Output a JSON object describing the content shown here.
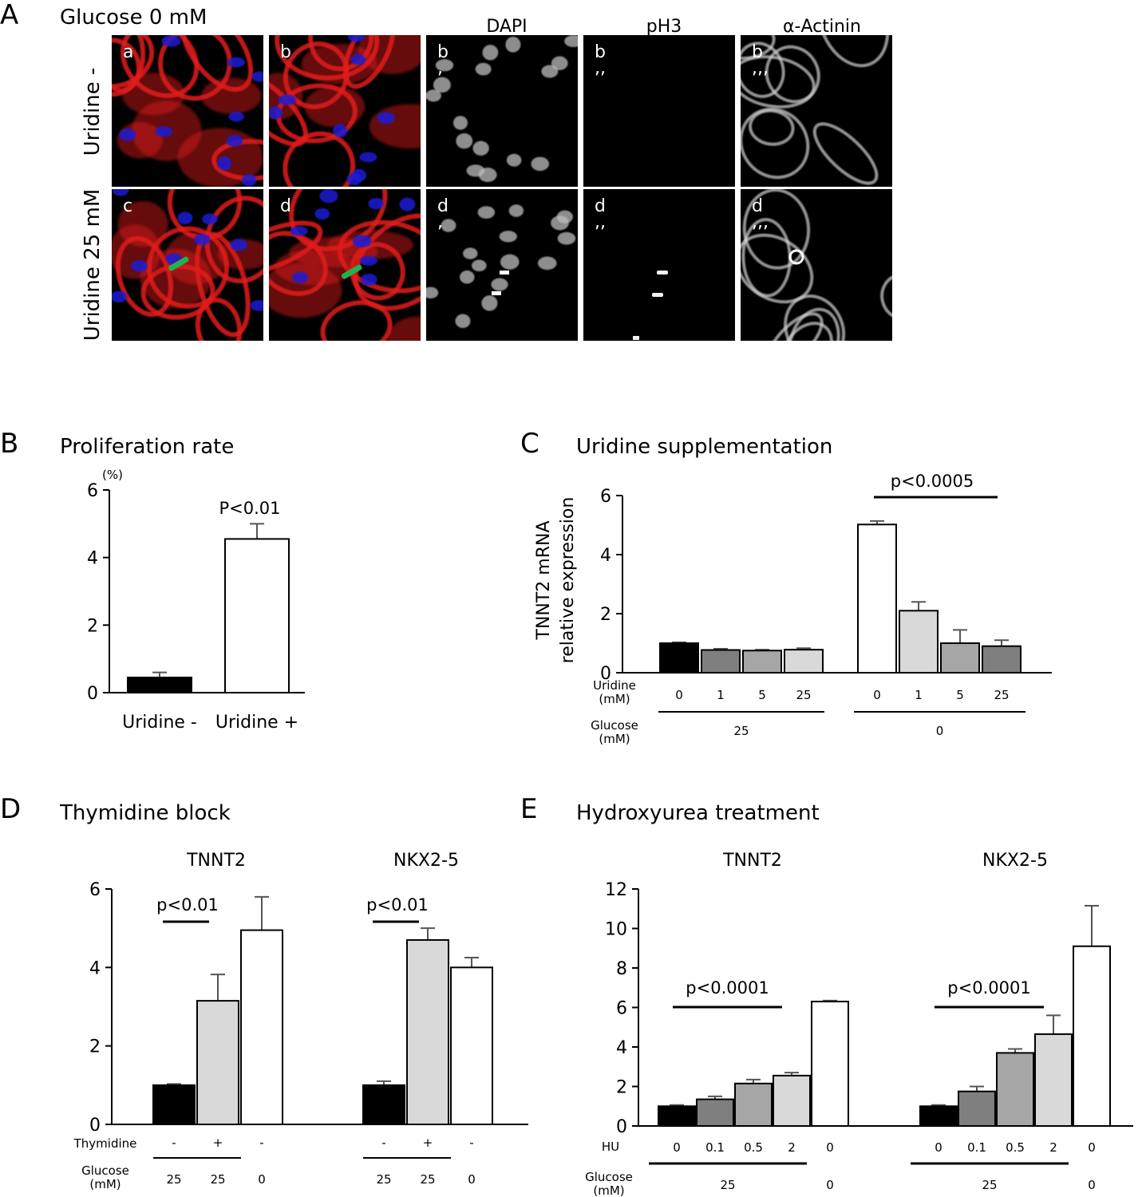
{
  "colors": {
    "dapi": "#1f1fd6",
    "ph3": "#22b14c",
    "actinin": "#e21b1b",
    "black": "#000000",
    "dark_gray": "#7f7f7f",
    "mid_gray": "#a6a6a6",
    "light_gray": "#d9d9d9",
    "white": "#ffffff"
  },
  "panel_a": {
    "letter": "A",
    "title": "Glucose 0 mM",
    "channel_labels": [
      "DAPI",
      "pH3",
      "α-Actinin"
    ],
    "row_labels": [
      "Uridine -",
      "Uridine 25 mM"
    ],
    "cells": [
      {
        "label": "a",
        "type": "merge",
        "row": 0
      },
      {
        "label": "b",
        "type": "merge",
        "row": 0
      },
      {
        "label": "b\n,",
        "type": "dapi",
        "row": 0
      },
      {
        "label": "b\n,,",
        "type": "ph3",
        "row": 0
      },
      {
        "label": "b\n,,,",
        "type": "actinin",
        "row": 0
      },
      {
        "label": "c",
        "type": "merge",
        "row": 1
      },
      {
        "label": "d",
        "type": "merge",
        "row": 1
      },
      {
        "label": "d\n,",
        "type": "dapi",
        "row": 1
      },
      {
        "label": "d\n,,",
        "type": "ph3",
        "row": 1
      },
      {
        "label": "d\n,,,",
        "type": "actinin",
        "row": 1
      }
    ]
  },
  "chart_data": [
    {
      "id": "B",
      "letter": "B",
      "type": "bar",
      "title": "Proliferation rate",
      "unit_label": "(%)",
      "ylim": [
        0,
        6
      ],
      "yticks": [
        "0",
        "2",
        "4",
        "6"
      ],
      "categories": [
        "Uridine -",
        "Uridine +"
      ],
      "values": [
        0.45,
        4.55
      ],
      "errors": [
        0.15,
        0.45
      ],
      "colors": [
        "black",
        "white"
      ],
      "pvalue": "P<0.01"
    },
    {
      "id": "C",
      "letter": "C",
      "type": "bar",
      "title": "Uridine supplementation",
      "ylabel_lines": [
        "TNNT2 mRNA",
        "relative expression"
      ],
      "ylim": [
        0,
        6
      ],
      "yticks": [
        "0",
        "2",
        "4",
        "6"
      ],
      "row_labels": [
        "Uridine\n(mM)",
        "Glucose\n(mM)"
      ],
      "groups": [
        {
          "glucose": "25",
          "uridine": [
            "0",
            "1",
            "5",
            "25"
          ],
          "values": [
            1.0,
            0.77,
            0.75,
            0.78
          ],
          "errors": [
            0.03,
            0.04,
            0.03,
            0.05
          ],
          "colors": [
            "black",
            "dark_gray",
            "mid_gray",
            "light_gray"
          ]
        },
        {
          "glucose": "0",
          "uridine": [
            "0",
            "1",
            "5",
            "25"
          ],
          "values": [
            5.02,
            2.1,
            1.0,
            0.9
          ],
          "errors": [
            0.12,
            0.3,
            0.45,
            0.2
          ],
          "colors": [
            "white",
            "light_gray",
            "mid_gray",
            "dark_gray"
          ]
        }
      ],
      "pvalue": "p<0.0005"
    },
    {
      "id": "D",
      "letter": "D",
      "type": "bar",
      "title": "Thymidine block",
      "ylim": [
        0,
        6
      ],
      "yticks": [
        "0",
        "2",
        "4",
        "6"
      ],
      "row_labels": [
        "Thymidine",
        "Glucose\n(mM)"
      ],
      "groups": [
        {
          "name": "TNNT2",
          "thymidine": [
            "-",
            "+",
            "-"
          ],
          "glucose": [
            "25",
            "25",
            "0"
          ],
          "values": [
            1.0,
            3.15,
            4.95
          ],
          "errors": [
            0.03,
            0.67,
            0.85
          ],
          "colors": [
            "black",
            "light_gray",
            "white"
          ],
          "pvalue": "p<0.01"
        },
        {
          "name": "NKX2-5",
          "thymidine": [
            "-",
            "+",
            "-"
          ],
          "glucose": [
            "25",
            "25",
            "0"
          ],
          "values": [
            1.0,
            4.7,
            4.0
          ],
          "errors": [
            0.1,
            0.3,
            0.25
          ],
          "colors": [
            "black",
            "light_gray",
            "white"
          ],
          "pvalue": "p<0.01"
        }
      ]
    },
    {
      "id": "E",
      "letter": "E",
      "type": "bar",
      "title": "Hydroxyurea  treatment",
      "ylim": [
        0,
        12
      ],
      "yticks": [
        "0",
        "2",
        "4",
        "6",
        "8",
        "10",
        "12"
      ],
      "row_labels": [
        "HU",
        "Glucose\n(mM)"
      ],
      "groups": [
        {
          "name": "TNNT2",
          "hu": [
            "0",
            "0.1",
            "0.5",
            "2",
            "0"
          ],
          "glucose_left": "25",
          "glucose_right": "0",
          "values": [
            1.0,
            1.35,
            2.15,
            2.55,
            6.3
          ],
          "errors": [
            0.06,
            0.15,
            0.2,
            0.15,
            0.05
          ],
          "colors": [
            "black",
            "dark_gray",
            "mid_gray",
            "light_gray",
            "white"
          ],
          "pvalue": "p<0.0001"
        },
        {
          "name": "NKX2-5",
          "hu": [
            "0",
            "0.1",
            "0.5",
            "2",
            "0"
          ],
          "glucose_left": "25",
          "glucose_right": "0",
          "values": [
            1.0,
            1.75,
            3.7,
            4.65,
            9.1
          ],
          "errors": [
            0.06,
            0.25,
            0.2,
            0.95,
            2.05
          ],
          "colors": [
            "black",
            "dark_gray",
            "mid_gray",
            "light_gray",
            "white"
          ],
          "pvalue": "p<0.0001"
        }
      ]
    }
  ]
}
